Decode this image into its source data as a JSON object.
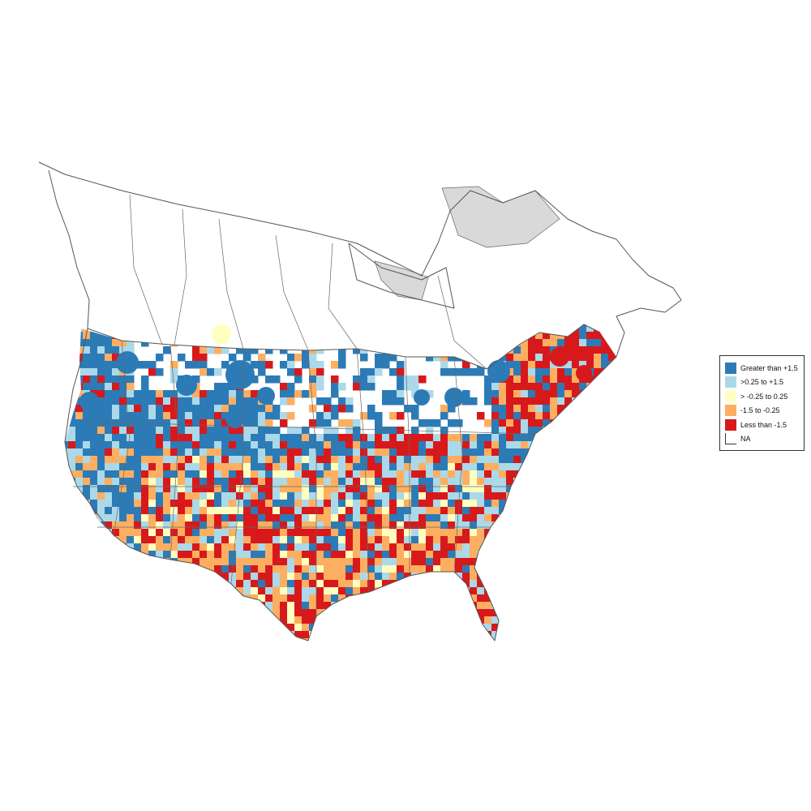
{
  "map": {
    "title": "",
    "region": "Contiguous United States and southern Canada",
    "background": "#ffffff",
    "nodata_color": "#d9d9d9",
    "border_color": "#555555"
  },
  "legend": {
    "position": "right",
    "items": [
      {
        "label": "Greater than +1.5",
        "color": "#2c7bb6"
      },
      {
        "label": ">0.25 to +1.5",
        "color": "#abd9e9"
      },
      {
        "label": "> -0.25 to 0.25",
        "color": "#ffffbf"
      },
      {
        "label": "-1.5 to -0.25",
        "color": "#fdae61"
      },
      {
        "label": "Less than -1.5",
        "color": "#d7191c"
      },
      {
        "label": "NA",
        "color": "#ffffff"
      }
    ]
  }
}
